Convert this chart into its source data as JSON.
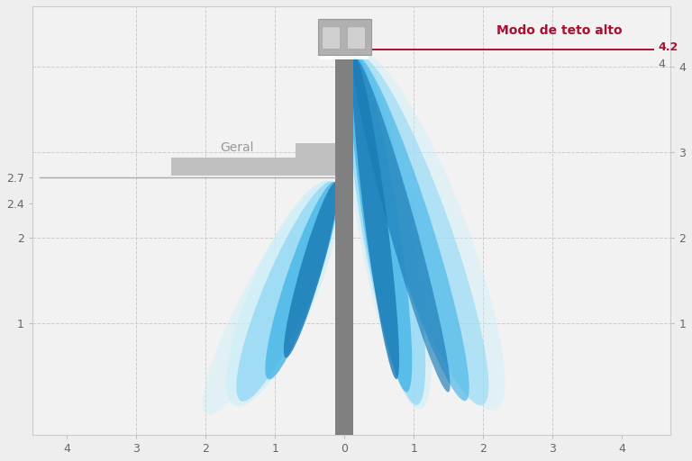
{
  "bg_color": "#eeeeee",
  "plot_bg": "#f2f2f2",
  "grid_color": "#cccccc",
  "xlim": [
    -4.5,
    4.7
  ],
  "ylim_bottom": -0.3,
  "ylim_top": 4.7,
  "left_yticks": [
    1,
    2,
    2.4,
    2.7
  ],
  "right_yticks": [
    1,
    2,
    3,
    4
  ],
  "xticks": [
    -4,
    -3,
    -2,
    -1,
    0,
    1,
    2,
    3,
    4
  ],
  "xticklabels": [
    "4",
    "3",
    "2",
    "1",
    "0",
    "1",
    "2",
    "3",
    "4"
  ],
  "geral_level": 2.7,
  "alto_level": 4.2,
  "label_geral": "Geral",
  "label_alto": "Modo de teto alto",
  "label_alto_val": "4.2",
  "label_alto_val_sub": "4",
  "color_dark_blue": "#1a7ab5",
  "color_mid_blue": "#4db8e8",
  "color_light_blue": "#90d8f5",
  "color_very_light_blue": "#c8eef8",
  "color_red": "#aa1030",
  "color_gray_text": "#999999",
  "color_unit_dark": "#666666",
  "pole_color": "#808080",
  "shelf_color": "#c0c0c0",
  "device_color": "#b0b0b0",
  "device_inner": "#d0d0d0"
}
